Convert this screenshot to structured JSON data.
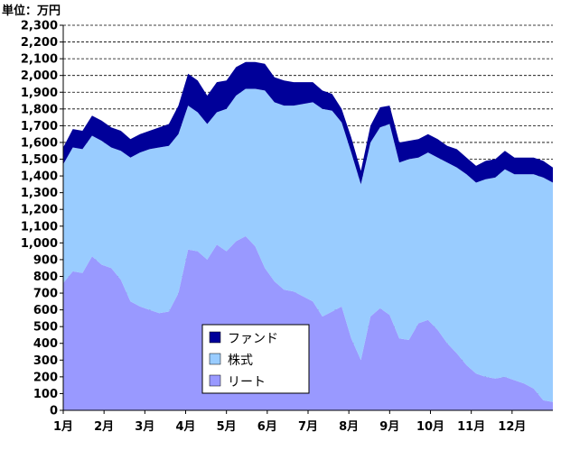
{
  "chart_data": {
    "type": "area",
    "stacked": true,
    "unit_label": "単位：万円",
    "ylim": [
      0,
      2300
    ],
    "y_ticks": [
      "0",
      "100",
      "200",
      "300",
      "400",
      "500",
      "600",
      "700",
      "800",
      "900",
      "1,000",
      "1,100",
      "1,200",
      "1,300",
      "1,400",
      "1,500",
      "1,600",
      "1,700",
      "1,800",
      "1,900",
      "2,000",
      "2,100",
      "2,200",
      "2,300"
    ],
    "y_tick_values": [
      0,
      100,
      200,
      300,
      400,
      500,
      600,
      700,
      800,
      900,
      1000,
      1100,
      1200,
      1300,
      1400,
      1500,
      1600,
      1700,
      1800,
      1900,
      2000,
      2100,
      2200,
      2300
    ],
    "x_ticks": [
      "1月",
      "2月",
      "3月",
      "4月",
      "5月",
      "6月",
      "7月",
      "8月",
      "9月",
      "10月",
      "11月",
      "12月"
    ],
    "grid": "horizontal-dashed",
    "legend_placement": "bottom-center",
    "series": [
      {
        "name": "リート",
        "color": "#9999ff",
        "values": [
          760,
          830,
          820,
          920,
          870,
          850,
          780,
          650,
          620,
          600,
          580,
          590,
          700,
          960,
          950,
          900,
          990,
          950,
          1010,
          1040,
          980,
          850,
          770,
          720,
          710,
          680,
          650,
          560,
          590,
          620,
          430,
          300,
          560,
          610,
          570,
          430,
          420,
          520,
          540,
          480,
          400,
          340,
          270,
          220,
          200,
          190,
          200,
          180,
          160,
          130,
          60,
          50
        ]
      },
      {
        "name": "株式",
        "color": "#99ccff",
        "values": [
          710,
          740,
          740,
          720,
          740,
          720,
          770,
          860,
          920,
          960,
          990,
          990,
          950,
          860,
          830,
          810,
          790,
          850,
          870,
          880,
          940,
          1060,
          1070,
          1100,
          1110,
          1150,
          1190,
          1240,
          1200,
          1100,
          1110,
          1050,
          1040,
          1080,
          1140,
          1050,
          1080,
          990,
          1000,
          1030,
          1080,
          1110,
          1140,
          1140,
          1180,
          1200,
          1240,
          1230,
          1250,
          1280,
          1330,
          1310
        ]
      },
      {
        "name": "ファンド",
        "color": "#000099",
        "values": [
          100,
          110,
          110,
          120,
          120,
          120,
          120,
          110,
          110,
          110,
          120,
          130,
          170,
          190,
          190,
          170,
          180,
          170,
          170,
          160,
          160,
          160,
          150,
          150,
          140,
          130,
          120,
          110,
          100,
          80,
          90,
          80,
          100,
          120,
          110,
          120,
          110,
          110,
          110,
          110,
          100,
          110,
          100,
          100,
          110,
          110,
          110,
          100,
          100,
          100,
          100,
          90
        ]
      }
    ]
  }
}
